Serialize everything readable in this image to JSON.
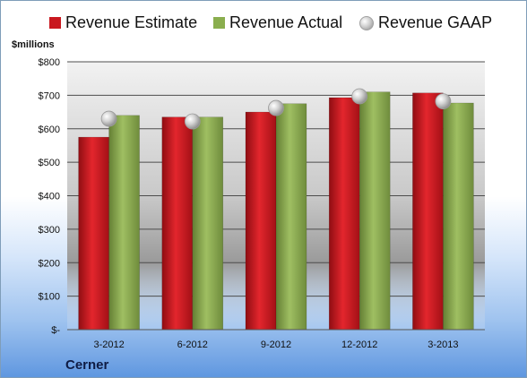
{
  "chart_data": {
    "type": "bar",
    "unit_label": "$millions",
    "company": "Cerner",
    "categories": [
      "3-2012",
      "6-2012",
      "9-2012",
      "12-2012",
      "3-2013"
    ],
    "y_ticks": [
      "$-",
      "$100",
      "$200",
      "$300",
      "$400",
      "$500",
      "$600",
      "$700",
      "$800"
    ],
    "ylim": [
      0,
      800
    ],
    "grid": true,
    "legend_position": "top",
    "series": [
      {
        "name": "Revenue Estimate",
        "kind": "bar",
        "color": "#c9181f",
        "values": [
          575,
          635,
          650,
          693,
          707
        ]
      },
      {
        "name": "Revenue Actual",
        "kind": "bar",
        "color": "#8aae4e",
        "values": [
          640,
          635,
          675,
          710,
          677
        ]
      },
      {
        "name": "Revenue GAAP",
        "kind": "marker",
        "color": "#c8c8c8",
        "values": [
          630,
          622,
          662,
          697,
          682
        ]
      }
    ]
  }
}
